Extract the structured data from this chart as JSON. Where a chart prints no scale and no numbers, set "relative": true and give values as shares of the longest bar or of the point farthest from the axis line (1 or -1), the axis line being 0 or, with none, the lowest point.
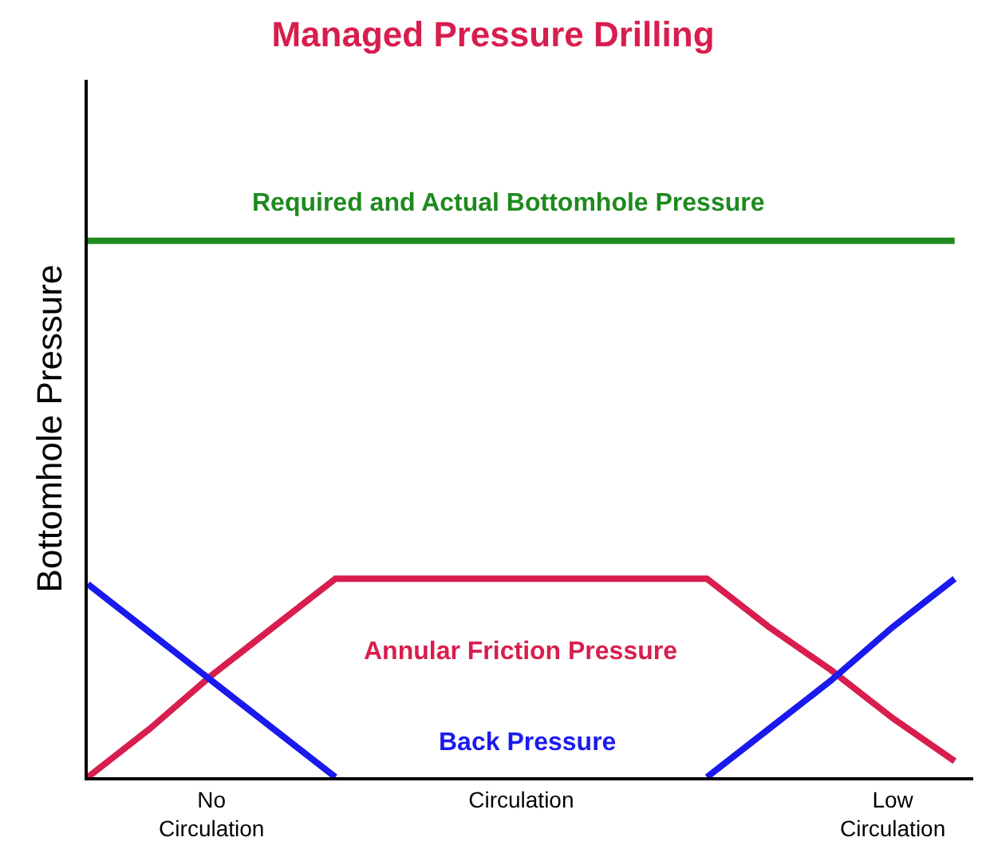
{
  "chart_data": {
    "type": "line",
    "title": "Managed Pressure Drilling",
    "ylabel": "Bottomhole Pressure",
    "relative": true,
    "categories": [
      null,
      null,
      "No\nCirculation",
      null,
      null,
      null,
      null,
      "Circulation",
      null,
      null,
      null,
      null,
      null,
      "Low\nCirculation",
      null
    ],
    "legend": false,
    "marker": "none",
    "line_style": "solid",
    "series": [
      {
        "name": "Required and Actual Bottomhole Pressure",
        "color": "#1e8a1e",
        "values": [
          1,
          1,
          1,
          1,
          1,
          1,
          1,
          1,
          1,
          1,
          1,
          1,
          1,
          1,
          1
        ]
      },
      {
        "name": "Annular Friction Pressure",
        "color": "#d81e4e",
        "values": [
          0,
          0.09,
          0.19,
          0.28,
          0.37,
          0.37,
          0.37,
          0.37,
          0.37,
          0.37,
          0.37,
          0.28,
          0.2,
          0.11,
          0.03
        ]
      },
      {
        "name": "Back Pressure",
        "color": "#1a1aee",
        "values": [
          0.36,
          0.27,
          0.18,
          0.09,
          0,
          null,
          null,
          null,
          null,
          null,
          0,
          0.09,
          0.18,
          0.28,
          0.37
        ]
      }
    ]
  }
}
